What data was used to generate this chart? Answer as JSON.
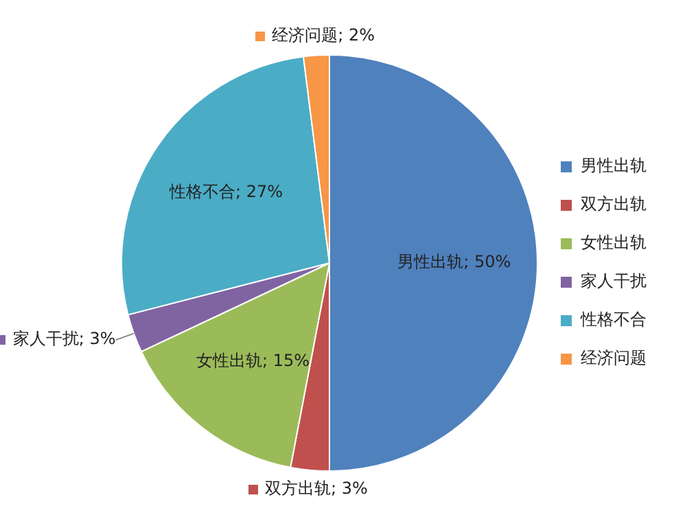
{
  "chart_data": {
    "type": "pie",
    "categories": [
      "男性出轨",
      "双方出轨",
      "女性出轨",
      "家人干扰",
      "性格不合",
      "经济问题"
    ],
    "values": [
      50,
      3,
      15,
      3,
      27,
      2
    ],
    "colors": [
      "#4f81bd",
      "#c0504d",
      "#9bbb59",
      "#8064a2",
      "#4bacc6",
      "#f79646"
    ],
    "value_labels": [
      "男性出轨; 50%",
      "双方出轨; 3%",
      "女性出轨; 15%",
      "家人干扰; 3%",
      "性格不合; 27%",
      "经济问题; 2%"
    ],
    "legend": "right"
  }
}
